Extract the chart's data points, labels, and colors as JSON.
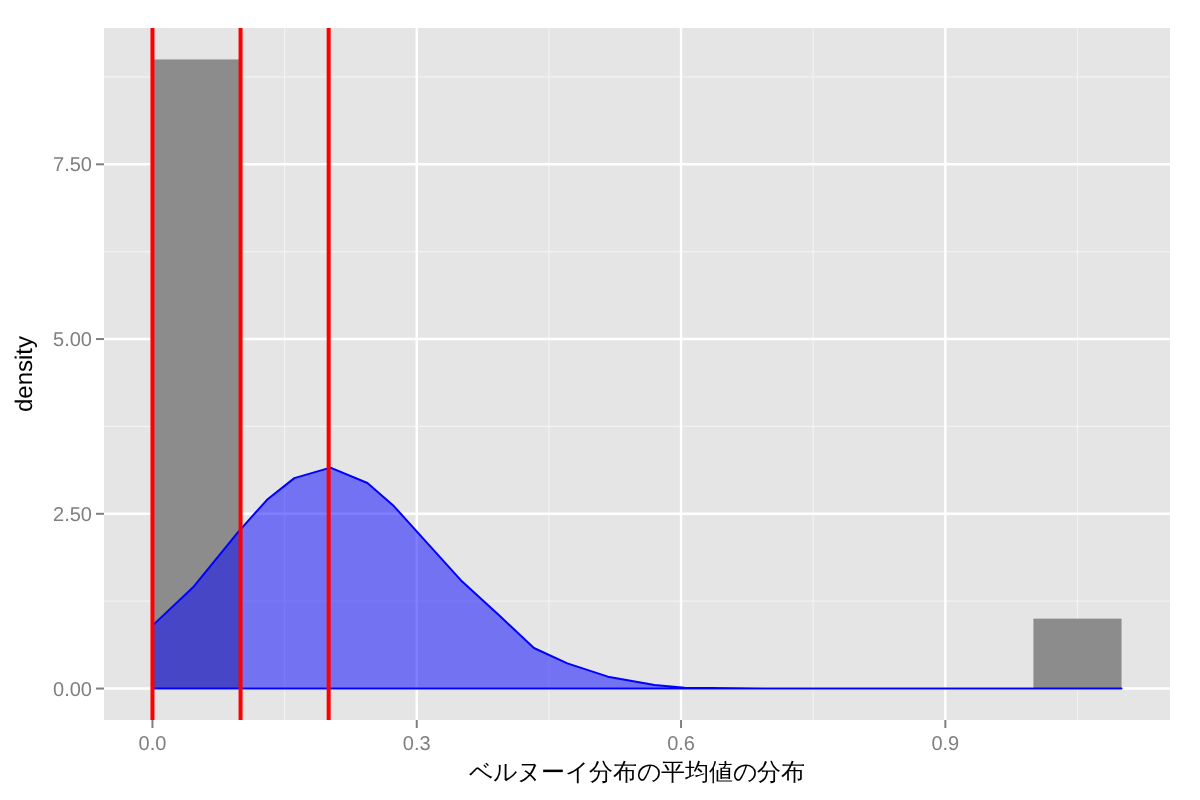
{
  "chart_data": {
    "type": "histogram",
    "xlabel": "ベルヌーイ分布の平均値の分布",
    "ylabel": "density",
    "xlim": [
      -0.055,
      1.155
    ],
    "ylim": [
      -0.45,
      9.45
    ],
    "xticks": [
      {
        "value": 0,
        "label": "0.0"
      },
      {
        "value": 0.3,
        "label": "0.3"
      },
      {
        "value": 0.6,
        "label": "0.6"
      },
      {
        "value": 0.9,
        "label": "0.9"
      }
    ],
    "yticks": [
      {
        "value": 0,
        "label": "0.00"
      },
      {
        "value": 2.5,
        "label": "2.50"
      },
      {
        "value": 5,
        "label": "5.00"
      },
      {
        "value": 7.5,
        "label": "7.50"
      }
    ],
    "grid": true,
    "series": [
      {
        "color": "#8c8c8c",
        "bins": [
          0,
          0.1,
          0.2,
          0.3,
          0.4,
          0.5,
          0.6,
          0.7,
          0.8,
          0.9,
          1.0,
          1.1
        ],
        "values": [
          9,
          0,
          0,
          0,
          0,
          0,
          0,
          0,
          0,
          0,
          1
        ]
      },
      {
        "type": "area",
        "color": "#0000ff",
        "x": [
          0,
          0.047,
          0.096,
          0.13,
          0.161,
          0.202,
          0.244,
          0.274,
          0.312,
          0.35,
          0.395,
          0.433,
          0.471,
          0.517,
          0.57,
          0.604,
          0.7,
          0.8,
          0.9,
          1.0,
          1.1
        ],
        "values": [
          0.9,
          1.46,
          2.22,
          2.7,
          3.01,
          3.16,
          2.94,
          2.61,
          2.08,
          1.55,
          1.03,
          0.58,
          0.36,
          0.17,
          0.05,
          0.01,
          0,
          0,
          0,
          0,
          0
        ]
      }
    ],
    "ref_lines": [
      {
        "axis": "x",
        "value": 0,
        "color": "#ff0000"
      },
      {
        "axis": "x",
        "value": 0.1,
        "color": "#ff0000"
      },
      {
        "axis": "x",
        "value": 0.2,
        "color": "#ff0000"
      }
    ]
  }
}
